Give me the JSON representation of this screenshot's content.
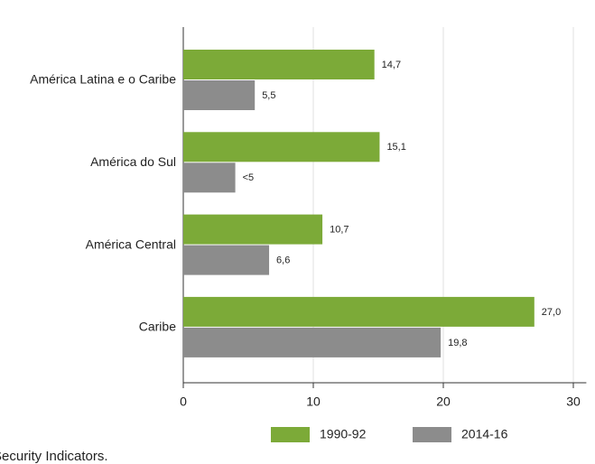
{
  "chart_data": {
    "type": "barh",
    "categories": [
      "América Latina e o Caribe",
      "América do Sul",
      "América Central",
      "Caribe"
    ],
    "series": [
      {
        "name": "1990-92",
        "color": "#7caa38",
        "values": [
          14.7,
          15.1,
          10.7,
          27.0
        ],
        "value_labels": [
          "14,7",
          "15,1",
          "10,7",
          "27,0"
        ]
      },
      {
        "name": "2014-16",
        "color": "#8c8c8c",
        "values": [
          5.5,
          4.0,
          6.6,
          19.8
        ],
        "value_labels": [
          "5,5",
          "<5",
          "6,6",
          "19,8"
        ]
      }
    ],
    "xlim": [
      0,
      31
    ],
    "xticks": [
      0,
      10,
      20,
      30
    ],
    "grid": true,
    "legend": "bottom",
    "footnote": "Security Indicators."
  }
}
